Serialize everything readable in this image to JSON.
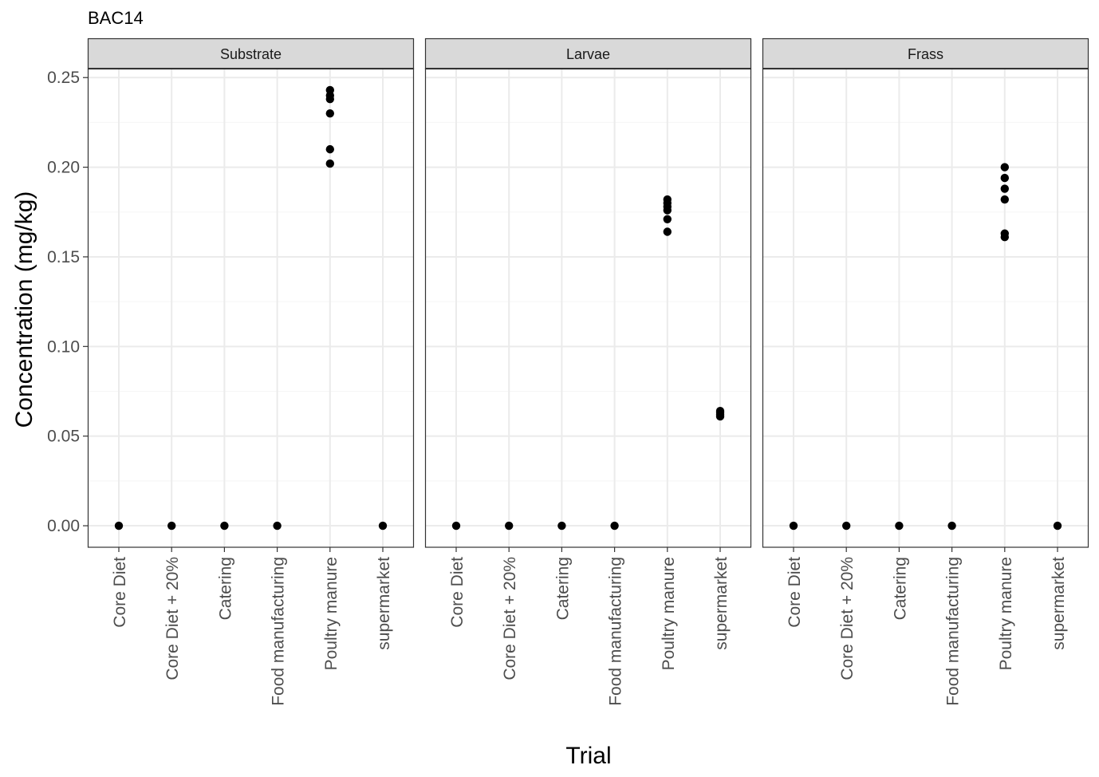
{
  "chart_data": {
    "type": "scatter",
    "title": "BAC14",
    "xlabel": "Trial",
    "ylabel": "Concentration (mg/kg)",
    "ylim": [
      -0.012,
      0.255
    ],
    "yticks": [
      "0.00",
      "0.05",
      "0.10",
      "0.15",
      "0.20",
      "0.25"
    ],
    "ytick_values": [
      0,
      0.05,
      0.1,
      0.15,
      0.2,
      0.25
    ],
    "categories": [
      "Core Diet",
      "Core Diet + 20%",
      "Catering",
      "Food manufacturing",
      "Poultry manure",
      "supermarket"
    ],
    "grid": true,
    "facets": [
      {
        "name": "Substrate",
        "points": [
          {
            "x": "Core Diet",
            "y": 0
          },
          {
            "x": "Core Diet + 20%",
            "y": 0
          },
          {
            "x": "Catering",
            "y": 0
          },
          {
            "x": "Food manufacturing",
            "y": 0
          },
          {
            "x": "supermarket",
            "y": 0
          },
          {
            "x": "Poultry manure",
            "y": 0.243
          },
          {
            "x": "Poultry manure",
            "y": 0.24
          },
          {
            "x": "Poultry manure",
            "y": 0.238
          },
          {
            "x": "Poultry manure",
            "y": 0.23
          },
          {
            "x": "Poultry manure",
            "y": 0.21
          },
          {
            "x": "Poultry manure",
            "y": 0.202
          }
        ]
      },
      {
        "name": "Larvae",
        "points": [
          {
            "x": "Core Diet",
            "y": 0
          },
          {
            "x": "Core Diet + 20%",
            "y": 0
          },
          {
            "x": "Catering",
            "y": 0
          },
          {
            "x": "Food manufacturing",
            "y": 0
          },
          {
            "x": "Poultry manure",
            "y": 0.182
          },
          {
            "x": "Poultry manure",
            "y": 0.18
          },
          {
            "x": "Poultry manure",
            "y": 0.178
          },
          {
            "x": "Poultry manure",
            "y": 0.176
          },
          {
            "x": "Poultry manure",
            "y": 0.171
          },
          {
            "x": "Poultry manure",
            "y": 0.164
          },
          {
            "x": "supermarket",
            "y": 0.064
          },
          {
            "x": "supermarket",
            "y": 0.063
          },
          {
            "x": "supermarket",
            "y": 0.062
          },
          {
            "x": "supermarket",
            "y": 0.061
          }
        ]
      },
      {
        "name": "Frass",
        "points": [
          {
            "x": "Core Diet",
            "y": 0
          },
          {
            "x": "Core Diet + 20%",
            "y": 0
          },
          {
            "x": "Catering",
            "y": 0
          },
          {
            "x": "Food manufacturing",
            "y": 0
          },
          {
            "x": "supermarket",
            "y": 0
          },
          {
            "x": "Poultry manure",
            "y": 0.2
          },
          {
            "x": "Poultry manure",
            "y": 0.194
          },
          {
            "x": "Poultry manure",
            "y": 0.188
          },
          {
            "x": "Poultry manure",
            "y": 0.182
          },
          {
            "x": "Poultry manure",
            "y": 0.163
          },
          {
            "x": "Poultry manure",
            "y": 0.161
          }
        ]
      }
    ]
  }
}
